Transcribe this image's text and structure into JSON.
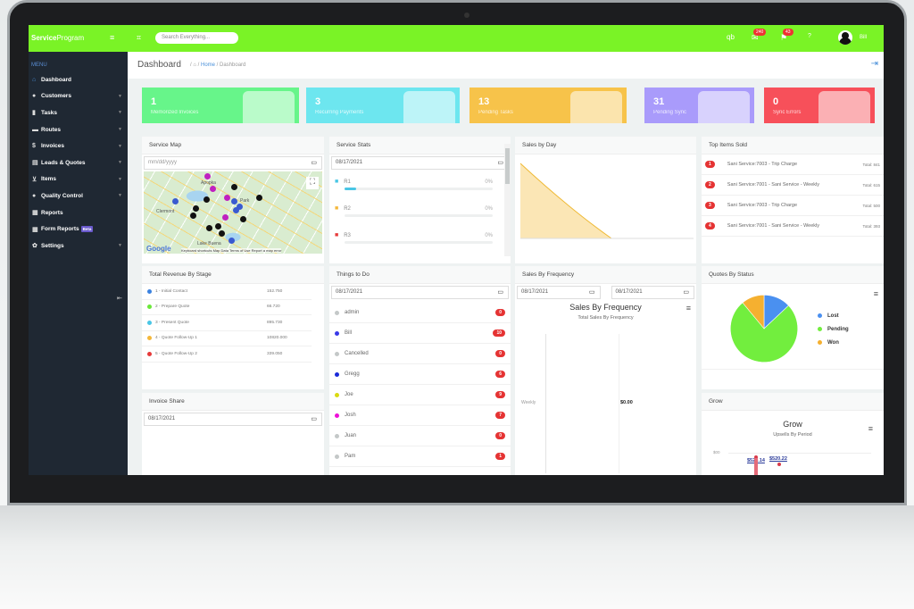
{
  "app": {
    "brand_bold": "Service",
    "brand_rest": "Program",
    "search_placeholder": "Search Everything...",
    "mail_count": "240",
    "flag_count": "43",
    "help": "?",
    "user": "Bill",
    "qb": "qb"
  },
  "sidebar": {
    "heading": "MENU",
    "items": [
      {
        "label": "Dashboard",
        "icon": "home-icon",
        "glyph": "⌂",
        "caret": false
      },
      {
        "label": "Customers",
        "icon": "user-icon",
        "glyph": "●",
        "caret": true
      },
      {
        "label": "Tasks",
        "icon": "clipboard-icon",
        "glyph": "▮",
        "caret": true
      },
      {
        "label": "Routes",
        "icon": "truck-icon",
        "glyph": "▬",
        "caret": true
      },
      {
        "label": "Invoices",
        "icon": "dollar-icon",
        "glyph": "$",
        "caret": true
      },
      {
        "label": "Leads & Quotes",
        "icon": "file-icon",
        "glyph": "▤",
        "caret": true
      },
      {
        "label": "Items",
        "icon": "cart-icon",
        "glyph": "⊻",
        "caret": true
      },
      {
        "label": "Quality Control",
        "icon": "user-check-icon",
        "glyph": "●",
        "caret": true
      },
      {
        "label": "Reports",
        "icon": "calculator-icon",
        "glyph": "▦",
        "caret": false
      },
      {
        "label": "Form Reports",
        "icon": "calculator-icon",
        "glyph": "▦",
        "caret": false,
        "badge": "Beta"
      },
      {
        "label": "Settings",
        "icon": "gear-icon",
        "glyph": "✿",
        "caret": true
      }
    ]
  },
  "breadcrumb": {
    "title": "Dashboard",
    "home": "Home",
    "current": "Dashboard"
  },
  "cards": [
    {
      "value": "1",
      "label": "Memorized Invoices",
      "color": "#67f58a"
    },
    {
      "value": "3",
      "label": "Recurring Payments",
      "color": "#6de6ef"
    },
    {
      "value": "13",
      "label": "Pending Tasks",
      "color": "#f7c34a"
    },
    {
      "value": "31",
      "label": "Pending Sync",
      "color": "#a99bfb"
    },
    {
      "value": "0",
      "label": "Sync Errors",
      "color": "#f7505a"
    }
  ],
  "service_map": {
    "title": "Service Map",
    "date_placeholder": "mm/dd/yyyy",
    "attribution": "Keyboard shortcuts  Map Data  Terms of Use  Report a map error",
    "google": "Google",
    "places": [
      "Apopka",
      "Clermont",
      "Park",
      "Lake Buena"
    ]
  },
  "service_stats": {
    "title": "Service Stats",
    "date": "08/17/2021",
    "routes": [
      {
        "name": "R1",
        "pct": "0%",
        "color": "#49c6e5",
        "fill": 0.08
      },
      {
        "name": "R2",
        "pct": "0%",
        "color": "#f4b73a",
        "fill": 0
      },
      {
        "name": "R3",
        "pct": "0%",
        "color": "#e63a3a",
        "fill": 0
      }
    ]
  },
  "sales_by_day": {
    "title": "Sales by Day"
  },
  "top_items": {
    "title": "Top Items Sold",
    "items": [
      {
        "rank": "1",
        "name": "Sani Service:7003 - Trip Charge",
        "total": "Total: 841"
      },
      {
        "rank": "2",
        "name": "Sani Service:7001 - Sani Service - Weekly",
        "total": "Total: 615"
      },
      {
        "rank": "3",
        "name": "Sani Service:7003 - Trip Charge",
        "total": "Total: 500"
      },
      {
        "rank": "4",
        "name": "Sani Service:7001 - Sani Service - Weekly",
        "total": "Total: 393"
      }
    ]
  },
  "revenue": {
    "title": "Total Revenue By Stage",
    "stages": [
      {
        "label": "1 - Initial Contact",
        "value": "152.750",
        "color": "#3b82e0"
      },
      {
        "label": "2 - Prepare Quote",
        "value": "66.720",
        "color": "#6ae83a"
      },
      {
        "label": "3 - Present Quote",
        "value": "895.730",
        "color": "#49c6e5"
      },
      {
        "label": "4 - Quote Follow-Up 1",
        "value": "10820.000",
        "color": "#f4b73a"
      },
      {
        "label": "5 - Quote Follow-Up 2",
        "value": "339.050",
        "color": "#e63a3a"
      }
    ]
  },
  "invoice_share": {
    "title": "Invoice Share",
    "date": "08/17/2021"
  },
  "todo": {
    "title": "Things to Do",
    "date": "08/17/2021",
    "people": [
      {
        "name": "admin",
        "count": "0",
        "color": "#c4c8c8"
      },
      {
        "name": "Bill",
        "count": "10",
        "color": "#3a3ae8"
      },
      {
        "name": "Cancelled",
        "count": "0",
        "color": "#c4c8c8"
      },
      {
        "name": "Gregg",
        "count": "6",
        "color": "#1a2ad8"
      },
      {
        "name": "Joe",
        "count": "9",
        "color": "#dada10"
      },
      {
        "name": "Josh",
        "count": "7",
        "color": "#ee10d8"
      },
      {
        "name": "Juan",
        "count": "0",
        "color": "#c4c8c8"
      },
      {
        "name": "Pam",
        "count": "1",
        "color": "#c4c8c8"
      }
    ]
  },
  "sales_freq": {
    "title": "Sales By Frequency",
    "date1": "08/17/2021",
    "date2": "08/17/2021",
    "chart_title": "Sales By Frequency",
    "subtitle": "Total Sales By Frequency",
    "category": "Weekly",
    "value": "$0.00"
  },
  "quotes": {
    "title": "Quotes By Status",
    "slices": [
      {
        "name": "Lost",
        "pct": 13,
        "color": "#4a90f0"
      },
      {
        "name": "Pending",
        "pct": 76,
        "color": "#72ee3e"
      },
      {
        "name": "Won",
        "pct": 11,
        "color": "#f5b030"
      }
    ]
  },
  "grow": {
    "title": "Grow",
    "chart_title": "Grow",
    "subtitle": "Upsells By Period",
    "ytick": "$00",
    "labels": [
      "$520.14",
      "$520.22"
    ]
  }
}
